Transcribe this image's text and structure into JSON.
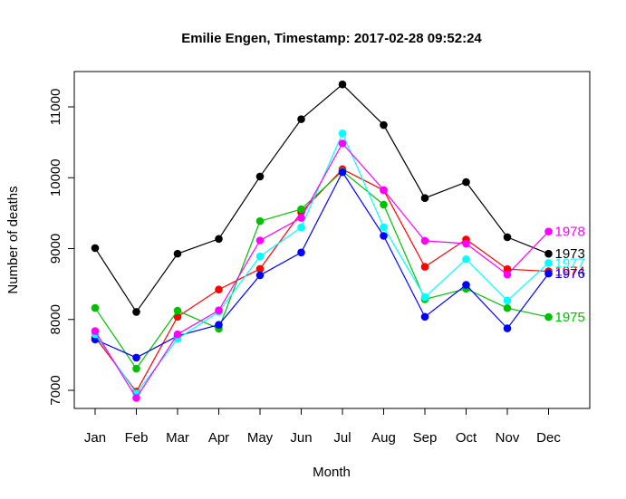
{
  "chart_data": {
    "type": "line",
    "title": "Emilie Engen, Timestamp: 2017-02-28 09:52:24",
    "xlabel": "Month",
    "ylabel": "Number of deaths",
    "categories": [
      "Jan",
      "Feb",
      "Mar",
      "Apr",
      "May",
      "Jun",
      "Jul",
      "Aug",
      "Sep",
      "Oct",
      "Nov",
      "Dec"
    ],
    "ylim": [
      6750,
      11500
    ],
    "yticks": [
      7000,
      8000,
      9000,
      10000,
      11000
    ],
    "grid": false,
    "series": [
      {
        "name": "1973",
        "color": "#000000",
        "values": [
          9007,
          8106,
          8928,
          9137,
          10017,
          10826,
          11317,
          10744,
          9713,
          9938,
          9161,
          8927
        ]
      },
      {
        "name": "1974",
        "color": "#ff0000",
        "values": [
          7750,
          6981,
          8038,
          8422,
          8714,
          9512,
          10120,
          9823,
          8743,
          9129,
          8710,
          8680
        ]
      },
      {
        "name": "1975",
        "color": "#00c000",
        "values": [
          8162,
          7306,
          8124,
          7870,
          9387,
          9556,
          10093,
          9620,
          8285,
          8433,
          8160,
          8034
        ]
      },
      {
        "name": "1976",
        "color": "#0000ff",
        "values": [
          7717,
          7461,
          7767,
          7925,
          8623,
          8945,
          10078,
          9179,
          8037,
          8488,
          7874,
          8647
        ]
      },
      {
        "name": "1977",
        "color": "#00ffff",
        "values": [
          7792,
          6957,
          7726,
          8106,
          8890,
          9299,
          10625,
          9302,
          8314,
          8850,
          8265,
          8796
        ]
      },
      {
        "name": "1978",
        "color": "#ff00ff",
        "values": [
          7836,
          6892,
          7791,
          8129,
          9115,
          9434,
          10484,
          9827,
          9110,
          9070,
          8633,
          9240
        ]
      }
    ]
  }
}
